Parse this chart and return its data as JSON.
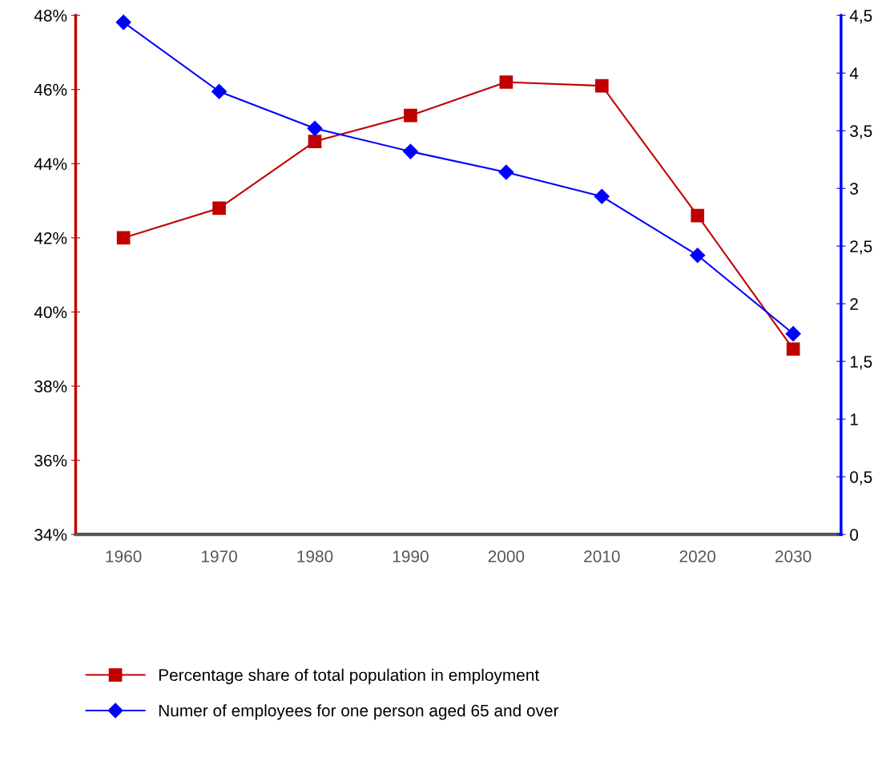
{
  "chart_data": {
    "type": "line",
    "categories": [
      "1960",
      "1970",
      "1980",
      "1990",
      "2000",
      "2010",
      "2020",
      "2030"
    ],
    "series": [
      {
        "name": "Percentage share of total population in employment",
        "color": "#c00000",
        "marker": "square",
        "values": [
          42.0,
          42.8,
          44.6,
          45.3,
          46.2,
          46.1,
          42.6,
          39.0
        ]
      },
      {
        "name": "Numer of employees for one person aged 65 and over",
        "color": "#0000ff",
        "marker": "diamond",
        "axis": "y2",
        "values": [
          4.44,
          3.84,
          3.52,
          3.32,
          3.14,
          2.93,
          2.42,
          1.74
        ]
      }
    ],
    "ylim": [
      34,
      48
    ],
    "yticks": [
      {
        "value": 34,
        "label": "34%"
      },
      {
        "value": 36,
        "label": "36%"
      },
      {
        "value": 38,
        "label": "38%"
      },
      {
        "value": 40,
        "label": "40%"
      },
      {
        "value": 42,
        "label": "42%"
      },
      {
        "value": 44,
        "label": "44%"
      },
      {
        "value": 46,
        "label": "46%"
      },
      {
        "value": 48,
        "label": "48%"
      }
    ],
    "y2lim": [
      0,
      4.5
    ],
    "y2ticks": [
      0,
      {
        "value": 0.5,
        "label": "0,5"
      },
      1,
      {
        "value": 1.5,
        "label": "1,5"
      },
      2,
      {
        "value": 2.5,
        "label": "2,5"
      },
      3,
      {
        "value": 3.5,
        "label": "3,5"
      },
      4,
      {
        "value": 4.5,
        "label": "4,5"
      }
    ],
    "grid": false,
    "legend": "bottom"
  }
}
